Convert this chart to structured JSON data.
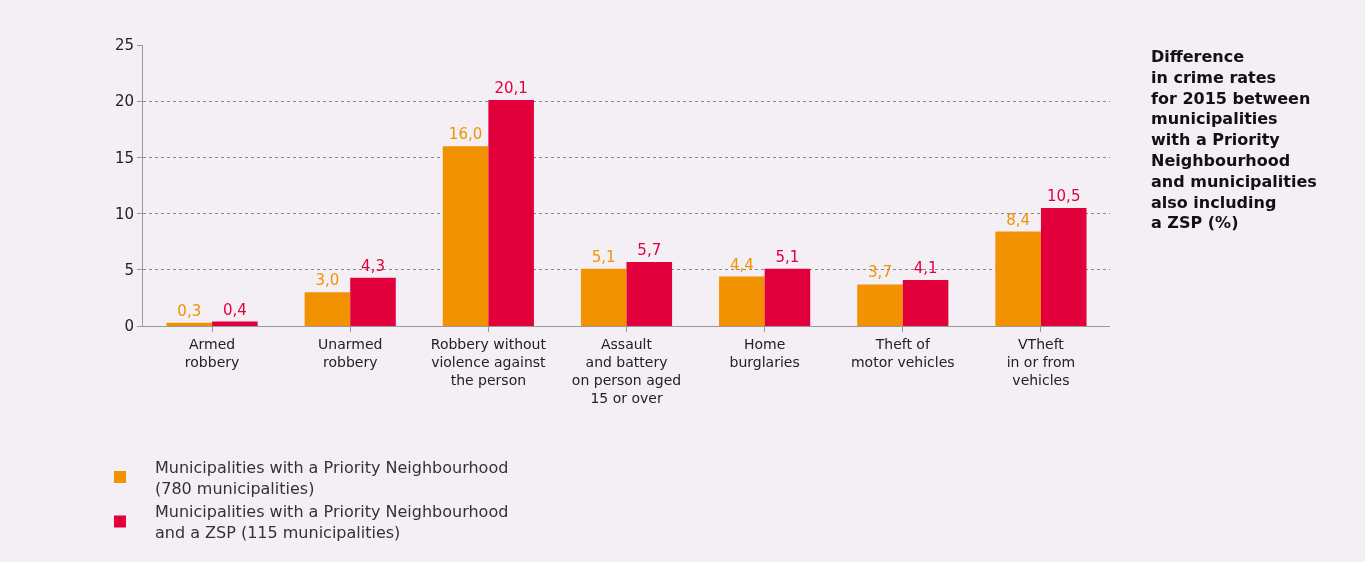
{
  "chart_data": {
    "type": "bar",
    "title": "Difference\nin crime rates\nfor 2015 between\nmunicipalities\nwith a Priority\nNeighbourhood\nand municipalities\nalso including\na ZSP (%)",
    "categories": [
      "Armed\nrobbery",
      "Unarmed\nrobbery",
      "Robbery without\nviolence against\nthe person",
      "Assault\nand battery\non person aged\n15 or over",
      "Home\nburglaries",
      "Theft of\nmotor vehicles",
      "VTheft\nin or from\nvehicles"
    ],
    "series": [
      {
        "name": "Municipalities with a Priority Neighbourhood\n(780 municipalities)",
        "color": "#f39200",
        "values": [
          0.3,
          3.0,
          16.0,
          5.1,
          4.4,
          3.7,
          8.4
        ],
        "value_labels": [
          "0,3",
          "3,0",
          "16,0",
          "5,1",
          "4,4",
          "3,7",
          "8,4"
        ]
      },
      {
        "name": "Municipalities with a Priority Neighbourhood\nand a ZSP (115 municipalities)",
        "color": "#e2003c",
        "values": [
          0.4,
          4.3,
          20.1,
          5.7,
          5.1,
          4.1,
          10.5
        ],
        "value_labels": [
          "0,4",
          "4,3",
          "20,1",
          "5,7",
          "5,1",
          "4,1",
          "10,5"
        ]
      }
    ],
    "ylim": [
      0,
      25
    ],
    "yticks": [
      0,
      5,
      10,
      15,
      20,
      25
    ],
    "grid": "y",
    "legend": "bottom"
  }
}
